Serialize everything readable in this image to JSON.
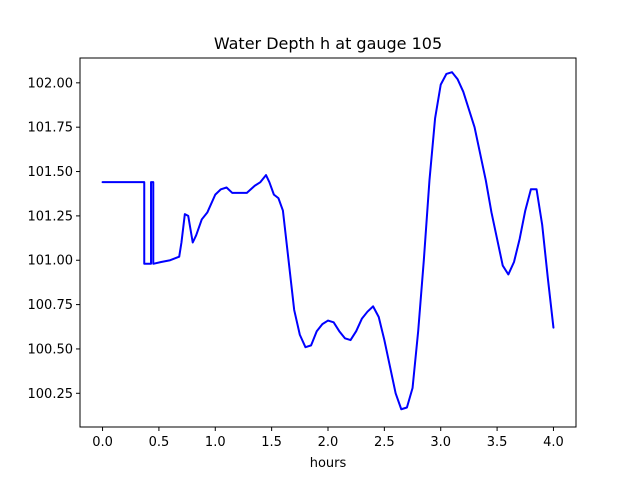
{
  "chart_data": {
    "type": "line",
    "title": "Water Depth h at gauge 105",
    "xlabel": "hours",
    "ylabel": "",
    "xlim": [
      -0.2,
      4.2
    ],
    "ylim": [
      100.06,
      102.14
    ],
    "xticks": [
      0.0,
      0.5,
      1.0,
      1.5,
      2.0,
      2.5,
      3.0,
      3.5,
      4.0
    ],
    "xtick_labels": [
      "0.0",
      "0.5",
      "1.0",
      "1.5",
      "2.0",
      "2.5",
      "3.0",
      "3.5",
      "4.0"
    ],
    "yticks": [
      100.25,
      100.5,
      100.75,
      101.0,
      101.25,
      101.5,
      101.75,
      102.0
    ],
    "ytick_labels": [
      "100.25",
      "100.50",
      "100.75",
      "101.00",
      "101.25",
      "101.50",
      "101.75",
      "102.00"
    ],
    "grid": false,
    "series": [
      {
        "name": "",
        "color": "#0000ff",
        "x": [
          0.0,
          0.1,
          0.2,
          0.3,
          0.37,
          0.37,
          0.42,
          0.43,
          0.43,
          0.45,
          0.45,
          0.52,
          0.6,
          0.68,
          0.7,
          0.73,
          0.76,
          0.8,
          0.83,
          0.88,
          0.93,
          1.0,
          1.05,
          1.1,
          1.15,
          1.2,
          1.28,
          1.35,
          1.4,
          1.45,
          1.48,
          1.52,
          1.56,
          1.6,
          1.65,
          1.7,
          1.75,
          1.8,
          1.85,
          1.9,
          1.95,
          2.0,
          2.05,
          2.1,
          2.15,
          2.2,
          2.25,
          2.3,
          2.35,
          2.4,
          2.45,
          2.5,
          2.55,
          2.6,
          2.65,
          2.7,
          2.75,
          2.8,
          2.85,
          2.9,
          2.95,
          3.0,
          3.05,
          3.1,
          3.15,
          3.2,
          3.3,
          3.4,
          3.45,
          3.5,
          3.55,
          3.6,
          3.65,
          3.7,
          3.75,
          3.8,
          3.85,
          3.9,
          3.95,
          4.0
        ],
        "y": [
          101.44,
          101.44,
          101.44,
          101.44,
          101.44,
          100.98,
          100.98,
          100.98,
          101.44,
          101.44,
          100.98,
          100.99,
          101.0,
          101.02,
          101.1,
          101.26,
          101.25,
          101.1,
          101.14,
          101.23,
          101.27,
          101.37,
          101.4,
          101.41,
          101.38,
          101.38,
          101.38,
          101.42,
          101.44,
          101.48,
          101.44,
          101.37,
          101.35,
          101.28,
          101.0,
          100.72,
          100.58,
          100.51,
          100.52,
          100.6,
          100.64,
          100.66,
          100.65,
          100.6,
          100.56,
          100.55,
          100.6,
          100.67,
          100.71,
          100.74,
          100.68,
          100.55,
          100.4,
          100.25,
          100.16,
          100.17,
          100.28,
          100.6,
          101.0,
          101.45,
          101.8,
          101.99,
          102.05,
          102.06,
          102.02,
          101.95,
          101.75,
          101.45,
          101.27,
          101.12,
          100.97,
          100.92,
          100.99,
          101.12,
          101.28,
          101.4,
          101.4,
          101.2,
          100.9,
          100.62
        ]
      }
    ]
  }
}
